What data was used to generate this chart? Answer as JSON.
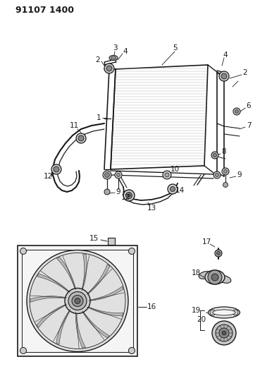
{
  "title": "91107 1400",
  "bg_color": "#ffffff",
  "line_color": "#1a1a1a",
  "title_fontsize": 9,
  "label_fontsize": 7.5,
  "fig_width": 3.96,
  "fig_height": 5.33,
  "dpi": 100
}
